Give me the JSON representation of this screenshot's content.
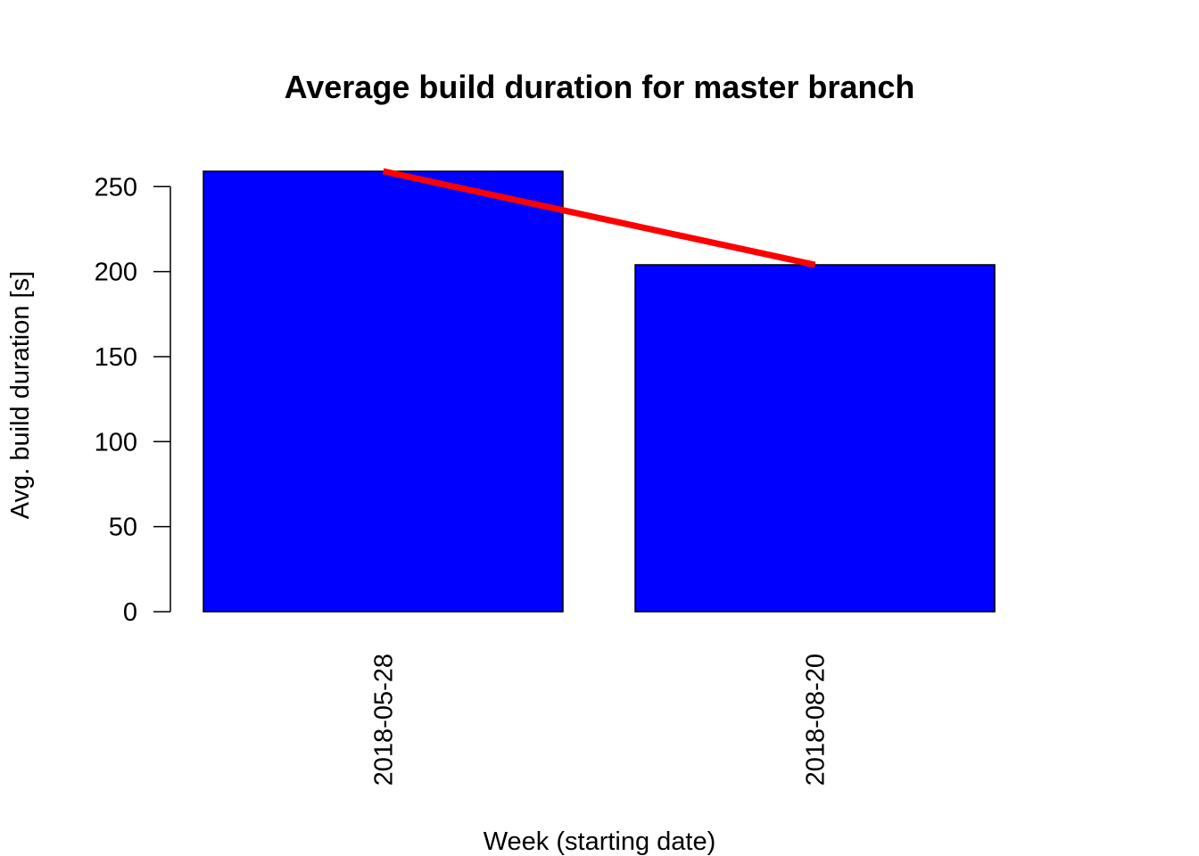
{
  "chart_data": {
    "type": "bar",
    "title": "Average build duration for master branch",
    "xlabel": "Week (starting date)",
    "ylabel": "Avg. build duration [s]",
    "categories": [
      "2018-05-28",
      "2018-08-20"
    ],
    "values": [
      259,
      204
    ],
    "ylim": [
      0,
      259
    ],
    "yticks": [
      0,
      50,
      100,
      150,
      200,
      250
    ],
    "bar_color": "#0000ff",
    "line_color": "#ff0000",
    "trend_line": [
      259,
      204
    ],
    "grid": false,
    "legend": "none"
  }
}
